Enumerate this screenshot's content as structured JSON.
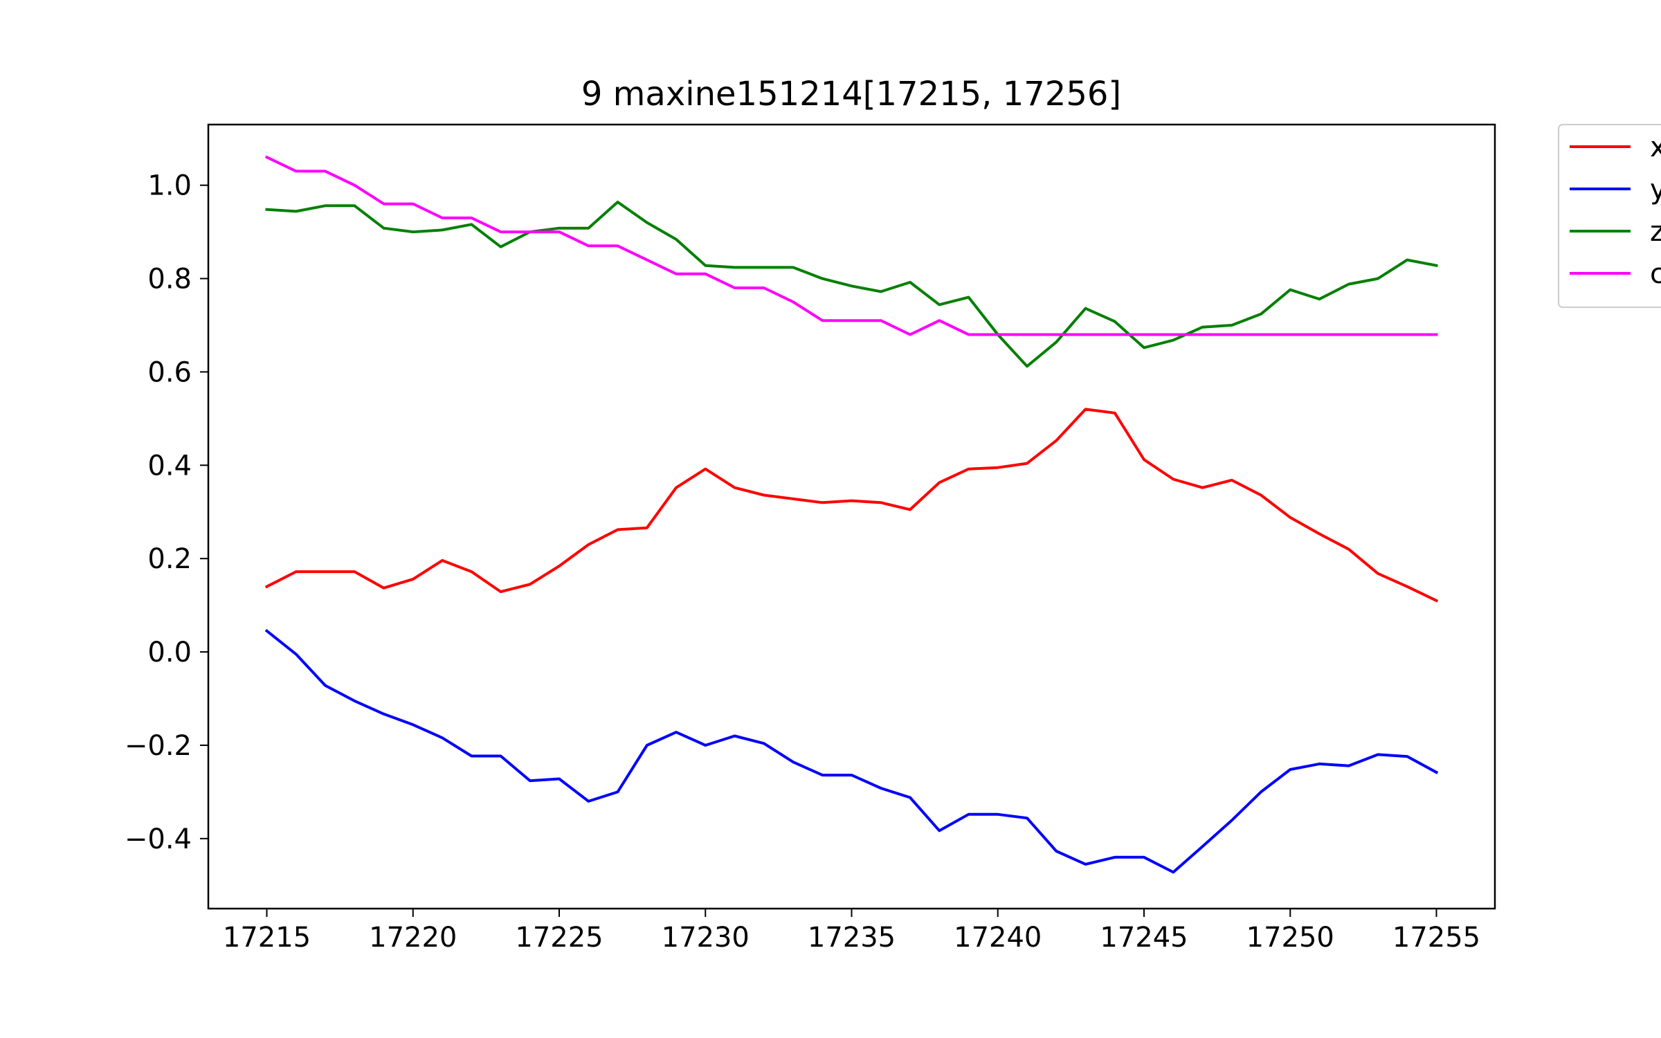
{
  "chart_data": {
    "type": "line",
    "title": "9 maxine151214[17215, 17256]",
    "xlabel": "",
    "ylabel": "",
    "xlim": [
      17213,
      17257
    ],
    "ylim": [
      -0.55,
      1.13
    ],
    "x_ticks": [
      17215,
      17220,
      17225,
      17230,
      17235,
      17240,
      17245,
      17250,
      17255
    ],
    "x_tick_labels": [
      "17215",
      "17220",
      "17225",
      "17230",
      "17235",
      "17240",
      "17245",
      "17250",
      "17255"
    ],
    "y_ticks": [
      -0.4,
      -0.2,
      0.0,
      0.2,
      0.4,
      0.6,
      0.8,
      1.0
    ],
    "y_tick_labels": [
      "−0.4",
      "−0.2",
      "0.0",
      "0.2",
      "0.4",
      "0.6",
      "0.8",
      "1.0"
    ],
    "grid": false,
    "legend_placement": "outside-top-right",
    "x": [
      17215,
      17216,
      17217,
      17218,
      17219,
      17220,
      17221,
      17222,
      17223,
      17224,
      17225,
      17226,
      17227,
      17228,
      17229,
      17230,
      17231,
      17232,
      17233,
      17234,
      17235,
      17236,
      17237,
      17238,
      17239,
      17240,
      17241,
      17242,
      17243,
      17244,
      17245,
      17246,
      17247,
      17248,
      17249,
      17250,
      17251,
      17252,
      17253,
      17254,
      17255
    ],
    "series": [
      {
        "name": "x",
        "color": "#ff0000",
        "values": [
          0.14,
          0.172,
          0.172,
          0.172,
          0.137,
          0.156,
          0.196,
          0.172,
          0.129,
          0.145,
          0.184,
          0.23,
          0.262,
          0.266,
          0.352,
          0.392,
          0.352,
          0.336,
          0.328,
          0.32,
          0.324,
          0.32,
          0.305,
          0.363,
          0.392,
          0.395,
          0.404,
          0.453,
          0.52,
          0.512,
          0.412,
          0.37,
          0.352,
          0.368,
          0.336,
          0.288,
          0.253,
          0.22,
          0.168,
          0.14,
          0.11
        ]
      },
      {
        "name": "y",
        "color": "#0000ff",
        "values": [
          0.045,
          -0.005,
          -0.072,
          -0.105,
          -0.133,
          -0.156,
          -0.184,
          -0.223,
          -0.223,
          -0.276,
          -0.272,
          -0.32,
          -0.3,
          -0.2,
          -0.172,
          -0.2,
          -0.18,
          -0.196,
          -0.236,
          -0.264,
          -0.264,
          -0.292,
          -0.312,
          -0.383,
          -0.348,
          -0.348,
          -0.356,
          -0.427,
          -0.455,
          -0.44,
          -0.44,
          -0.472,
          -0.417,
          -0.361,
          -0.3,
          -0.252,
          -0.24,
          -0.244,
          -0.22,
          -0.224,
          -0.258
        ]
      },
      {
        "name": "z",
        "color": "#008000",
        "values": [
          0.948,
          0.944,
          0.956,
          0.956,
          0.908,
          0.9,
          0.904,
          0.916,
          0.868,
          0.9,
          0.908,
          0.908,
          0.964,
          0.92,
          0.884,
          0.828,
          0.824,
          0.824,
          0.824,
          0.8,
          0.784,
          0.772,
          0.792,
          0.744,
          0.76,
          0.68,
          0.612,
          0.664,
          0.736,
          0.708,
          0.652,
          0.668,
          0.696,
          0.7,
          0.724,
          0.776,
          0.756,
          0.788,
          0.8,
          0.84,
          0.828
        ]
      },
      {
        "name": "c",
        "color": "#ff00ff",
        "values": [
          1.06,
          1.03,
          1.03,
          1.0,
          0.96,
          0.96,
          0.93,
          0.93,
          0.9,
          0.9,
          0.9,
          0.87,
          0.87,
          0.84,
          0.81,
          0.81,
          0.78,
          0.78,
          0.75,
          0.71,
          0.71,
          0.71,
          0.68,
          0.71,
          0.68,
          0.68,
          0.68,
          0.68,
          0.68,
          0.68,
          0.68,
          0.68,
          0.68,
          0.68,
          0.68,
          0.68,
          0.68,
          0.68,
          0.68,
          0.68,
          0.68
        ]
      }
    ]
  }
}
